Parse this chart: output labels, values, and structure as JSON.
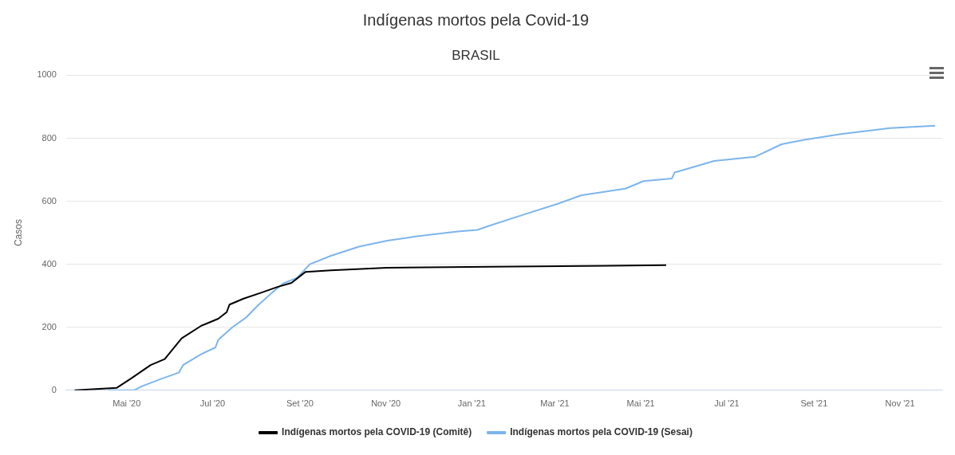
{
  "chart_data": {
    "type": "line",
    "title": "Indígenas mortos pela Covid-19",
    "subtitle": "BRASIL",
    "ylabel": "Casos",
    "ylim": [
      0,
      1000
    ],
    "yticks": [
      0,
      200,
      400,
      600,
      800,
      1000
    ],
    "xlim": [
      "2020-03-19",
      "2021-12-01"
    ],
    "xticks": [
      {
        "value": "2020-05-01",
        "label": "Mai '20"
      },
      {
        "value": "2020-07-01",
        "label": "Jul '20"
      },
      {
        "value": "2020-09-01",
        "label": "Set '20"
      },
      {
        "value": "2020-11-01",
        "label": "Nov '20"
      },
      {
        "value": "2021-01-01",
        "label": "Jan '21"
      },
      {
        "value": "2021-03-01",
        "label": "Mar '21"
      },
      {
        "value": "2021-05-01",
        "label": "Mai '21"
      },
      {
        "value": "2021-07-01",
        "label": "Jul '21"
      },
      {
        "value": "2021-09-01",
        "label": "Set '21"
      },
      {
        "value": "2021-11-01",
        "label": "Nov '21"
      }
    ],
    "grid": "y",
    "legend": "bottom",
    "series": [
      {
        "name": "Indígenas mortos pela COVID-19 (Comitê)",
        "color": "#000000",
        "x": [
          "2020-03-25",
          "2020-04-24",
          "2020-05-04",
          "2020-05-18",
          "2020-05-28",
          "2020-06-09",
          "2020-06-23",
          "2020-07-05",
          "2020-07-11",
          "2020-07-13",
          "2020-07-23",
          "2020-08-04",
          "2020-08-16",
          "2020-08-26",
          "2020-09-05",
          "2020-09-23",
          "2020-11-02",
          "2021-01-14",
          "2021-05-19"
        ],
        "values": [
          0,
          8,
          37,
          80,
          99,
          165,
          205,
          227,
          248,
          272,
          291,
          309,
          328,
          341,
          376,
          381,
          389,
          392,
          397
        ]
      },
      {
        "name": "Indígenas mortos pela COVID-19 (Sesai)",
        "color": "#7cb5ec",
        "x": [
          "2020-04-18",
          "2020-05-06",
          "2020-05-12",
          "2020-05-26",
          "2020-06-07",
          "2020-06-10",
          "2020-06-23",
          "2020-07-03",
          "2020-07-05",
          "2020-07-15",
          "2020-07-25",
          "2020-08-02",
          "2020-08-12",
          "2020-08-20",
          "2020-08-30",
          "2020-09-08",
          "2020-09-23",
          "2020-10-13",
          "2020-11-02",
          "2020-11-22",
          "2020-12-22",
          "2021-01-05",
          "2021-01-14",
          "2021-02-05",
          "2021-03-03",
          "2021-03-20",
          "2021-04-20",
          "2021-05-03",
          "2021-05-23",
          "2021-05-25",
          "2021-06-22",
          "2021-07-21",
          "2021-08-09",
          "2021-08-25",
          "2021-09-20",
          "2021-10-25",
          "2021-11-26"
        ],
        "values": [
          0,
          0,
          13,
          37,
          56,
          80,
          115,
          136,
          160,
          200,
          232,
          269,
          309,
          339,
          357,
          400,
          427,
          456,
          475,
          488,
          504,
          509,
          523,
          555,
          592,
          619,
          640,
          664,
          672,
          691,
          728,
          741,
          781,
          795,
          813,
          832,
          840
        ]
      }
    ]
  }
}
